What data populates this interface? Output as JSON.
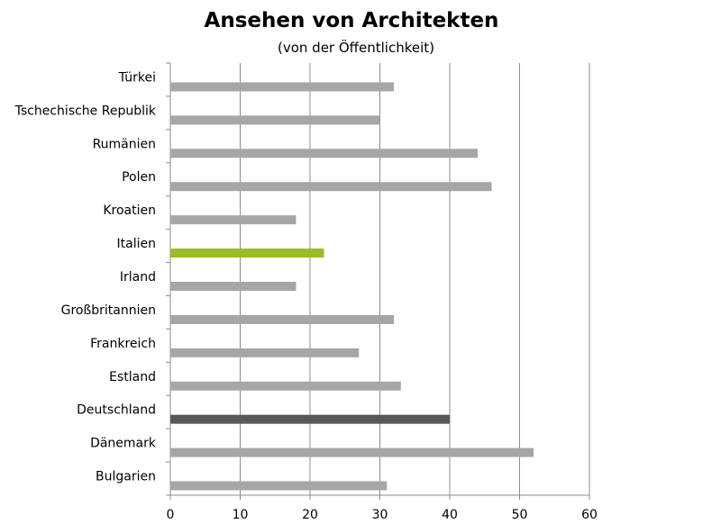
{
  "chart_data": {
    "type": "bar",
    "orientation": "horizontal",
    "title": "Ansehen von Architekten",
    "subtitle": "(von der Öffentlichkeit)",
    "xlabel": "",
    "ylabel": "",
    "xlim": [
      0,
      60
    ],
    "xticks": [
      0,
      10,
      20,
      30,
      40,
      50,
      60
    ],
    "grid": "vertical",
    "legend": "none",
    "categories": [
      "Türkei",
      "Tschechische Republik",
      "Rumänien",
      "Polen",
      "Kroatien",
      "Italien",
      "Irland",
      "Großbritannien",
      "Frankreich",
      "Estland",
      "Deutschland",
      "Dänemark",
      "Bulgarien"
    ],
    "values": [
      32,
      30,
      44,
      46,
      18,
      22,
      18,
      32,
      27,
      33,
      40,
      52,
      31
    ],
    "colors": {
      "default": "#a6a6a6",
      "Italien": "#9bbb2b",
      "Deutschland": "#595959",
      "grid": "#8c8c8c",
      "axis": "#8c8c8c"
    }
  }
}
